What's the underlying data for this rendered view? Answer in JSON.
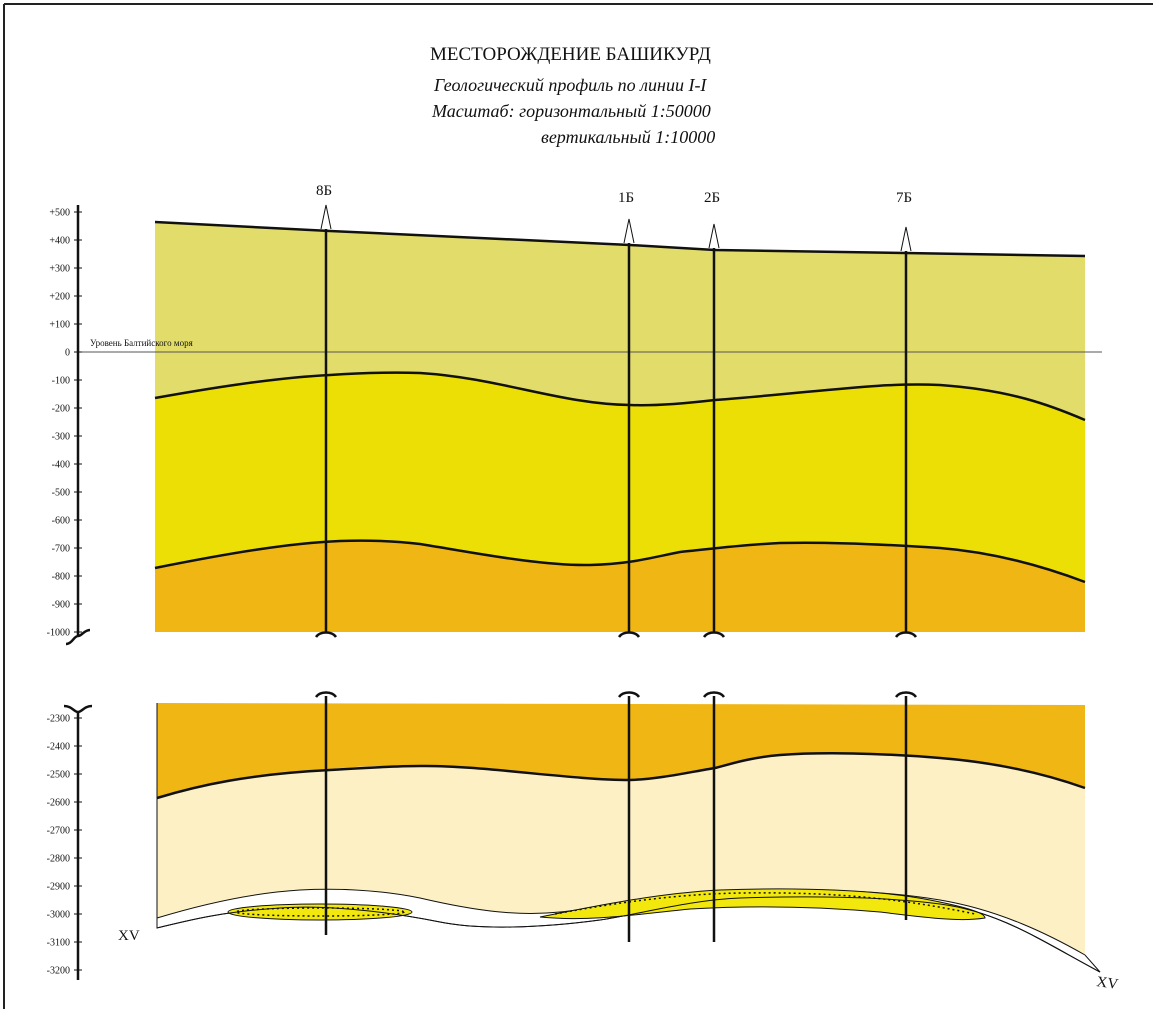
{
  "header": {
    "title": "МЕСТОРОЖДЕНИЕ БАШИКУРД",
    "subtitle": "Геологический профиль по линии I-I",
    "scale_h": "Масштаб: горизонтальный 1:50000",
    "scale_v": "вертикальный 1:10000"
  },
  "sea_level_label": "Уровень Балтийского моря",
  "wells": [
    {
      "name": "8Б"
    },
    {
      "name": "1Б"
    },
    {
      "name": "2Б"
    },
    {
      "name": "7Б"
    }
  ],
  "axis_upper": {
    "ticks": [
      "+500",
      "+400",
      "+300",
      "+200",
      "+100",
      "0",
      "-100",
      "-200",
      "-300",
      "-400",
      "-500",
      "-600",
      "-700",
      "-800",
      "-900",
      "-1000"
    ],
    "values": [
      500,
      400,
      300,
      200,
      100,
      0,
      -100,
      -200,
      -300,
      -400,
      -500,
      -600,
      -700,
      -800,
      -900,
      -1000
    ]
  },
  "axis_lower": {
    "ticks": [
      "-2300",
      "-2400",
      "-2500",
      "-2600",
      "-2700",
      "-2800",
      "-2900",
      "-3000",
      "-3100",
      "-3200"
    ],
    "values": [
      -2300,
      -2400,
      -2500,
      -2600,
      -2700,
      -2800,
      -2900,
      -3000,
      -3100,
      -3200
    ]
  },
  "horizons": {
    "left": "XV",
    "right": "XV"
  },
  "colors": {
    "layer1": "#e2dc6a",
    "layer2": "#ebdf05",
    "layer3": "#efb614",
    "layer4": "#fdf0c4",
    "reservoir": "#f2e80e",
    "frame": "#222222"
  }
}
